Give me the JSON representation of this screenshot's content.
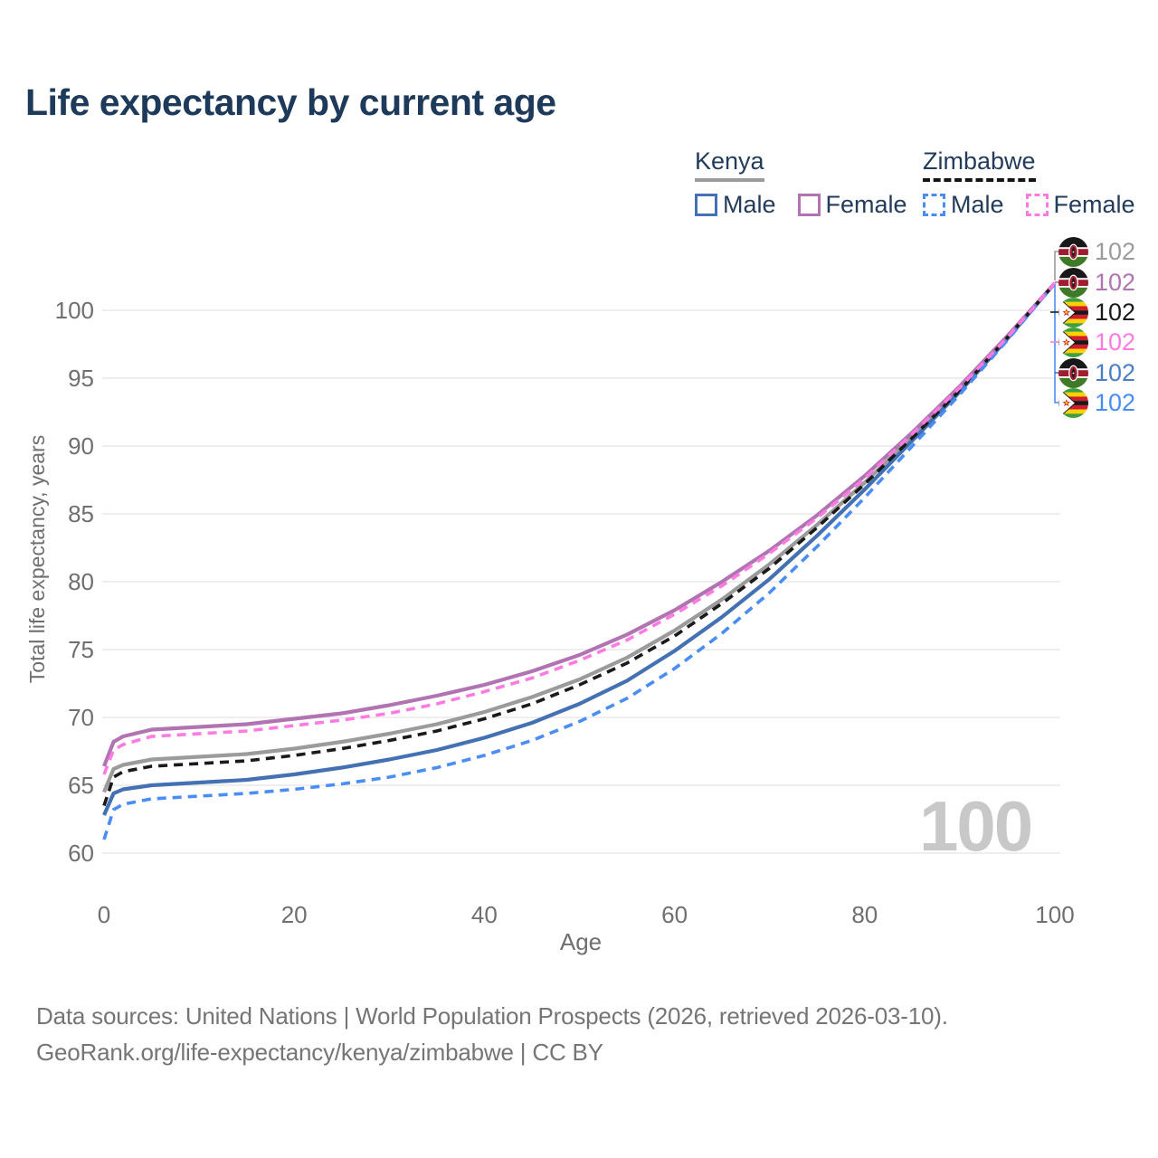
{
  "page": {
    "title": "Life expectancy by current age"
  },
  "legend": {
    "groups": [
      {
        "country": "Kenya",
        "line_style": "solid",
        "underline_color": "#9b9b9b",
        "items": [
          {
            "label": "Male",
            "color": "#4471b3",
            "dashed": false
          },
          {
            "label": "Female",
            "color": "#b273b2",
            "dashed": false
          }
        ]
      },
      {
        "country": "Zimbabwe",
        "line_style": "dashed",
        "underline_color": "#141414",
        "items": [
          {
            "label": "Male",
            "color": "#4a8df5",
            "dashed": true
          },
          {
            "label": "Female",
            "color": "#ff7be1",
            "dashed": true
          }
        ]
      }
    ]
  },
  "axes": {
    "y_title": "Total life expectancy, years",
    "y_ticks": [
      100,
      95,
      90,
      85,
      80,
      75,
      70,
      65,
      60
    ],
    "x_title": "Age",
    "x_ticks": [
      0,
      20,
      40,
      60,
      80,
      100
    ]
  },
  "hover": {
    "age_counter": "100"
  },
  "end_labels": [
    {
      "flag": "kenya",
      "value": "102",
      "color": "#9b9b9b"
    },
    {
      "flag": "kenya",
      "value": "102",
      "color": "#b273b2"
    },
    {
      "flag": "zimbabwe",
      "value": "102",
      "color": "#1a1a1a"
    },
    {
      "flag": "zimbabwe",
      "value": "102",
      "color": "#ff7be1"
    },
    {
      "flag": "kenya",
      "value": "102",
      "color": "#4a7fc7"
    },
    {
      "flag": "zimbabwe",
      "value": "102",
      "color": "#4a8df5"
    }
  ],
  "footer": {
    "line1": "Data sources: United Nations | World Population Prospects (2026, retrieved 2026-03-10).",
    "line2": "GeoRank.org/life-expectancy/kenya/zimbabwe | CC BY"
  },
  "chart_data": {
    "type": "line",
    "title": "Life expectancy by current age",
    "xlabel": "Age",
    "ylabel": "Total life expectancy, years",
    "xlim": [
      0,
      100
    ],
    "ylim": [
      60,
      102
    ],
    "grid": "horizontal",
    "legend_position": "top-right",
    "x": [
      0,
      1,
      2,
      5,
      10,
      15,
      20,
      25,
      30,
      35,
      40,
      45,
      50,
      55,
      60,
      65,
      70,
      75,
      80,
      85,
      90,
      95,
      100
    ],
    "series": [
      {
        "name": "Kenya",
        "color": "#9b9b9b",
        "dashed": false,
        "values": [
          64.5,
          66.2,
          66.5,
          66.9,
          67.1,
          67.3,
          67.7,
          68.2,
          68.8,
          69.5,
          70.4,
          71.5,
          72.8,
          74.4,
          76.4,
          78.7,
          81.3,
          84.2,
          87.3,
          90.7,
          94.2,
          98.0,
          102
        ]
      },
      {
        "name": "Kenya Male",
        "color": "#4471b3",
        "dashed": false,
        "values": [
          62.8,
          64.4,
          64.7,
          65.0,
          65.2,
          65.4,
          65.8,
          66.3,
          66.9,
          67.6,
          68.5,
          69.6,
          71.0,
          72.7,
          74.9,
          77.4,
          80.2,
          83.4,
          86.8,
          90.4,
          94.0,
          97.9,
          102
        ]
      },
      {
        "name": "Kenya Female",
        "color": "#b273b2",
        "dashed": false,
        "values": [
          66.4,
          68.2,
          68.6,
          69.1,
          69.3,
          69.5,
          69.9,
          70.3,
          70.9,
          71.6,
          72.4,
          73.4,
          74.6,
          76.1,
          77.9,
          80.0,
          82.3,
          84.9,
          87.8,
          91.0,
          94.4,
          98.1,
          102
        ]
      },
      {
        "name": "Zimbabwe",
        "color": "#1a1a1a",
        "dashed": true,
        "values": [
          63.5,
          65.6,
          66.0,
          66.4,
          66.6,
          66.8,
          67.2,
          67.7,
          68.3,
          69.0,
          69.9,
          71.0,
          72.4,
          74.0,
          76.0,
          78.4,
          81.0,
          84.0,
          87.2,
          90.6,
          94.1,
          98.0,
          102
        ]
      },
      {
        "name": "Zimbabwe Male",
        "color": "#4a8df5",
        "dashed": true,
        "values": [
          61.0,
          63.2,
          63.6,
          64.0,
          64.2,
          64.4,
          64.7,
          65.1,
          65.6,
          66.3,
          67.2,
          68.3,
          69.7,
          71.4,
          73.6,
          76.2,
          79.2,
          82.6,
          86.2,
          90.0,
          93.8,
          97.8,
          102
        ]
      },
      {
        "name": "Zimbabwe Female",
        "color": "#ff7be1",
        "dashed": true,
        "values": [
          65.8,
          67.6,
          68.0,
          68.6,
          68.8,
          69.0,
          69.4,
          69.8,
          70.3,
          71.0,
          71.9,
          72.9,
          74.2,
          75.7,
          77.6,
          79.7,
          82.1,
          84.7,
          87.6,
          90.9,
          94.3,
          98.0,
          102
        ]
      }
    ],
    "end_value_label": "102"
  }
}
